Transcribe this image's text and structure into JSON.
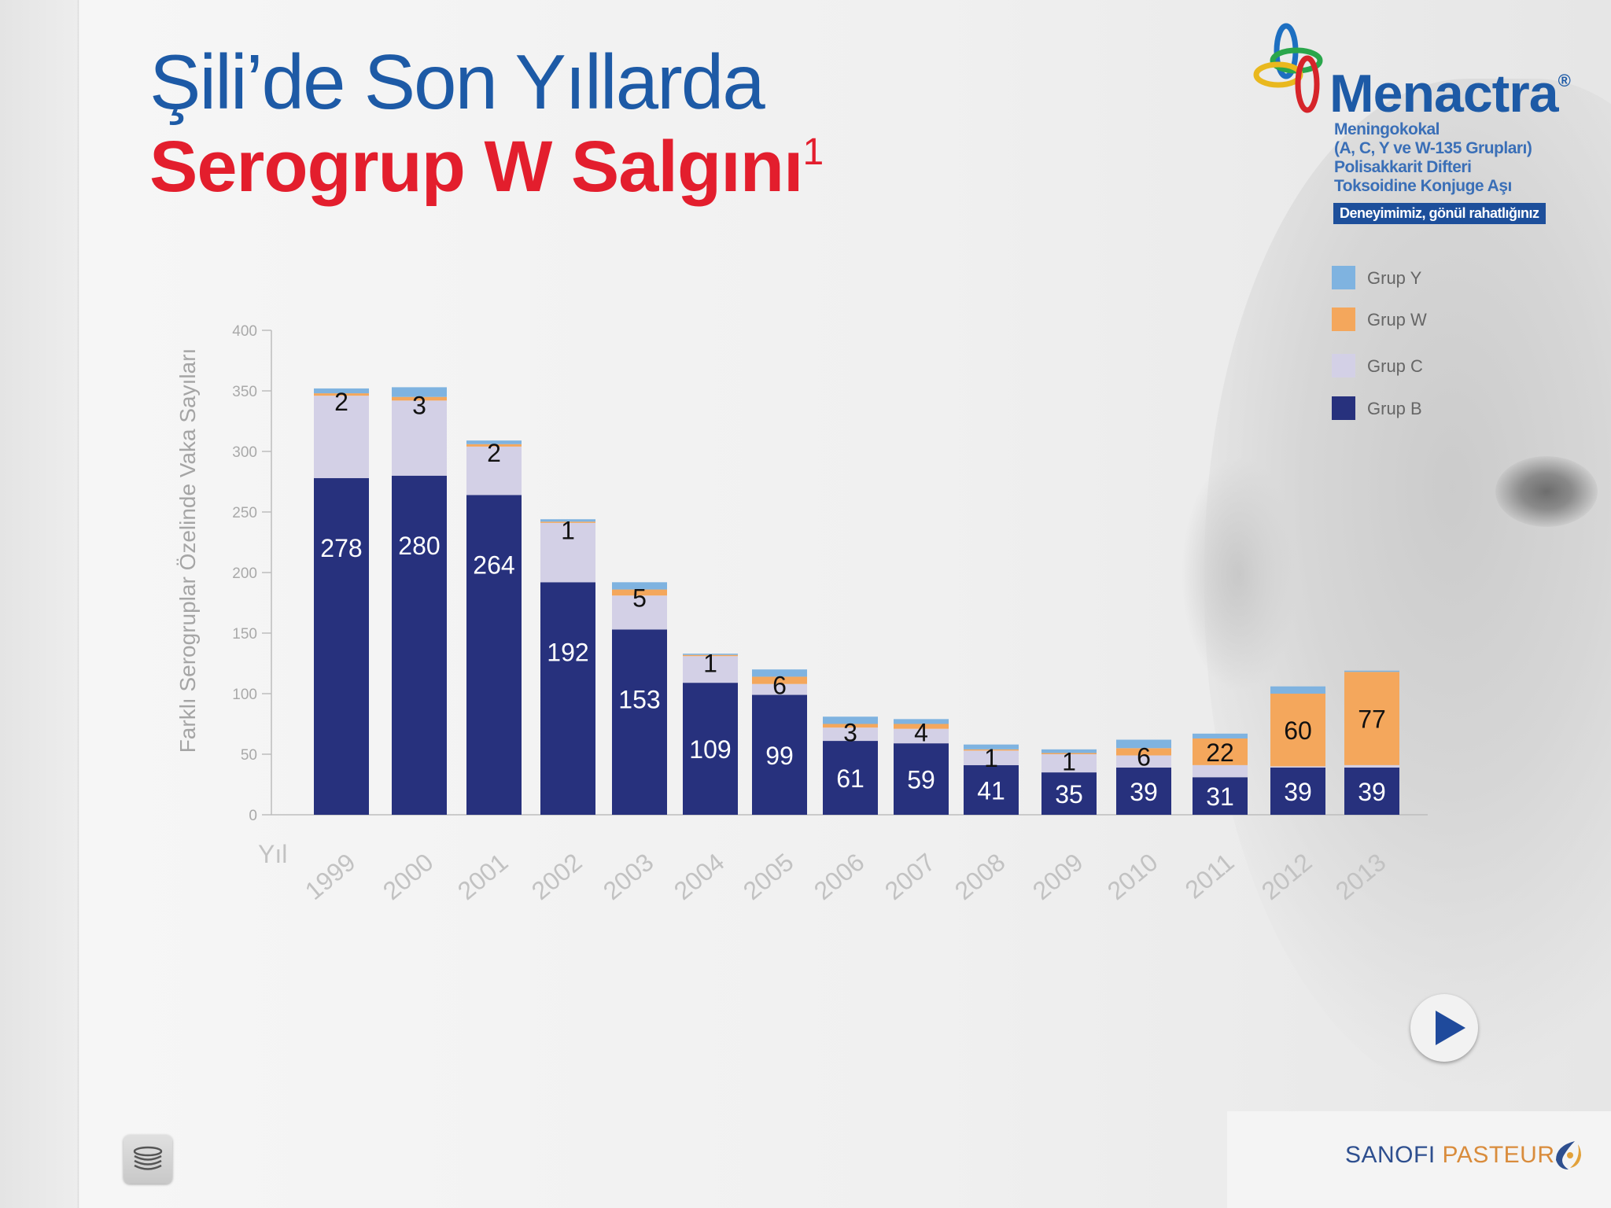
{
  "title": {
    "line1": "Şili’de Son Yıllarda",
    "line2": "Serogrup W Salgını",
    "superscript": "1"
  },
  "logo": {
    "brand": "Menactra",
    "registered": "®",
    "subtitle_lines": [
      "Meningokokal",
      "(A, C, Y ve W-135 Grupları)",
      "Polisakkarit Difteri",
      "Toksoidine Konjuge Aşı"
    ],
    "tagline": "Deneyimimiz, gönül rahatlığınız"
  },
  "legend": [
    {
      "label": "Grup Y",
      "color": "#7fb3e0"
    },
    {
      "label": "Grup W",
      "color": "#f4a75c"
    },
    {
      "label": "Grup C",
      "color": "#d3d0e6"
    },
    {
      "label": "Grup B",
      "color": "#27317d"
    }
  ],
  "chart_data": {
    "type": "bar",
    "stacked": true,
    "ylabel": "Farklı Serogruplar Özelinde Vaka Sayıları",
    "xlabel": "Yıl",
    "ylim": [
      0,
      400
    ],
    "yticks": [
      0,
      50,
      100,
      150,
      200,
      250,
      300,
      350,
      400
    ],
    "categories": [
      "1999",
      "2000",
      "2001",
      "2002",
      "2003",
      "2004",
      "2005",
      "2006",
      "2007",
      "2008",
      "2009",
      "2010",
      "2011",
      "2012",
      "2013"
    ],
    "series": [
      {
        "name": "Grup B",
        "color": "#27317d",
        "values": [
          278,
          280,
          264,
          192,
          153,
          109,
          99,
          61,
          59,
          41,
          35,
          39,
          31,
          39,
          39
        ]
      },
      {
        "name": "Grup C",
        "color": "#d3d0e6",
        "values": [
          68,
          62,
          40,
          49,
          28,
          22,
          9,
          11,
          12,
          12,
          15,
          10,
          10,
          1,
          2
        ]
      },
      {
        "name": "Grup W",
        "color": "#f4a75c",
        "values": [
          2,
          3,
          2,
          1,
          5,
          1,
          6,
          3,
          4,
          1,
          1,
          6,
          22,
          60,
          77
        ]
      },
      {
        "name": "Grup Y",
        "color": "#7fb3e0",
        "values": [
          4,
          8,
          3,
          2,
          6,
          1,
          6,
          6,
          4,
          4,
          3,
          7,
          4,
          6,
          1
        ]
      }
    ],
    "labels_B": [
      "278",
      "280",
      "264",
      "192",
      "153",
      "109",
      "99",
      "61",
      "59",
      "41",
      "35",
      "39",
      "31",
      "39",
      "39"
    ],
    "labels_W": [
      "2",
      "3",
      "2",
      "1",
      "5",
      "1",
      "6",
      "3",
      "4",
      "1",
      "1",
      "6",
      "22",
      "60",
      "77"
    ]
  },
  "footer": {
    "company_part1": "SANOFI",
    "company_part2": "PASTEUR"
  },
  "controls": {
    "play_icon": "play-icon",
    "menu_icon": "layers-icon"
  }
}
